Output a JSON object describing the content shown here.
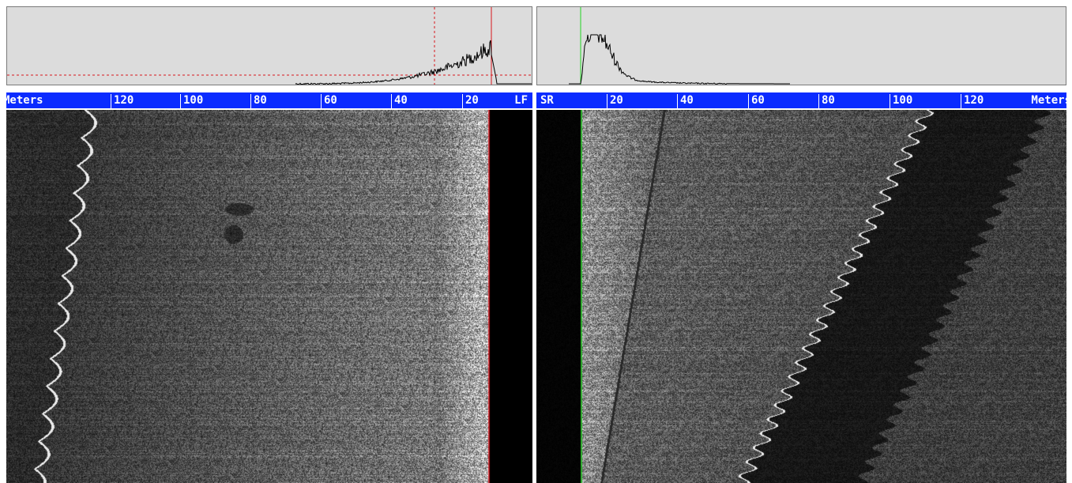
{
  "port": {
    "ruler": {
      "units_label": "Meters",
      "channel_label": "LF",
      "ticks": [
        "120",
        "100",
        "80",
        "60",
        "40",
        "20"
      ]
    },
    "colors": {
      "bottom_track": "#e0161e",
      "gain_line": "#d8161c"
    }
  },
  "starboard": {
    "ruler": {
      "units_label": "Meters",
      "channel_label": "SR",
      "ticks": [
        "20",
        "40",
        "60",
        "80",
        "100",
        "120"
      ]
    },
    "colors": {
      "bottom_track": "#22d422"
    }
  },
  "colors": {
    "ruler_bg": "#0b2bff",
    "histogram_bg": "#dcdcdc",
    "histogram_trace": "#000000",
    "water_column": "#000000"
  }
}
